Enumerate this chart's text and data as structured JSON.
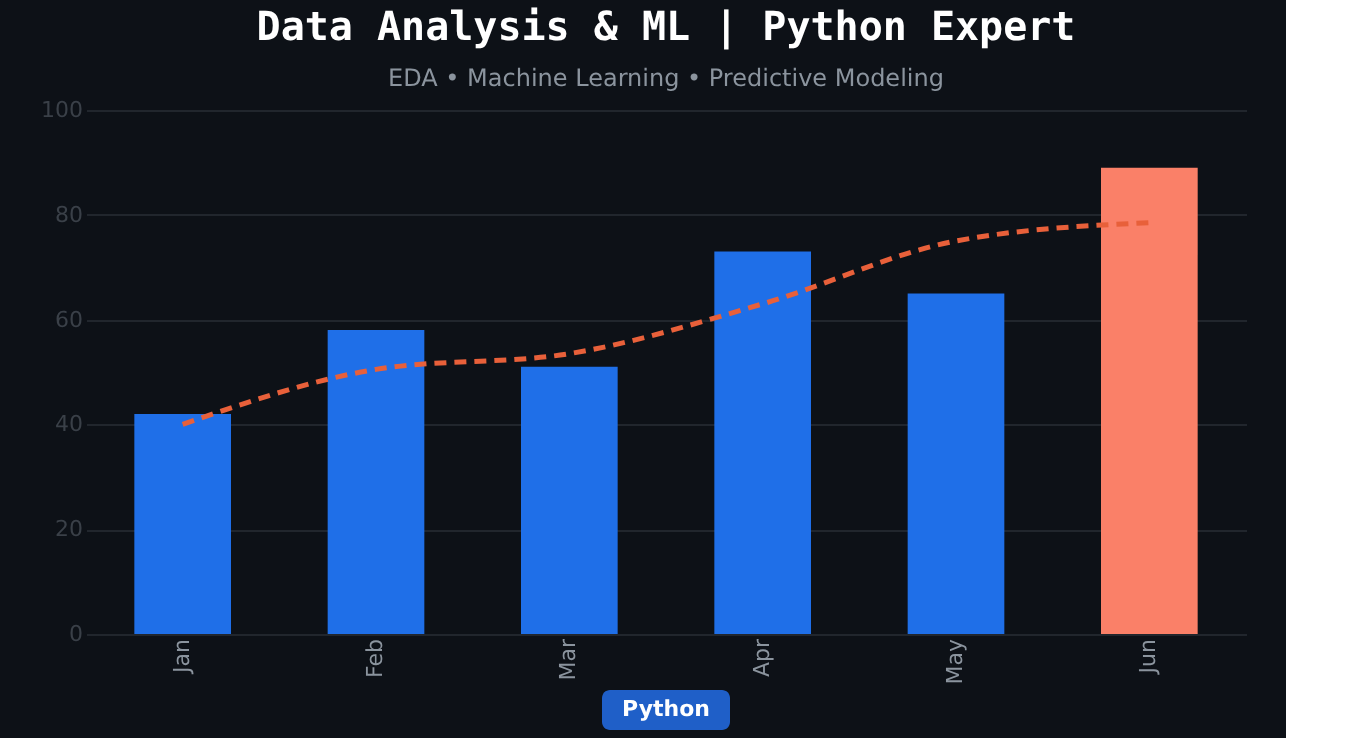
{
  "chart_data": {
    "type": "bar",
    "title": "Data Analysis & ML  |  Python Expert",
    "subtitle": "EDA  •  Machine Learning  •  Predictive Modeling",
    "categories": [
      "Jan",
      "Feb",
      "Mar",
      "Apr",
      "May",
      "Jun"
    ],
    "series": [
      {
        "values": [
          42,
          58,
          51,
          73,
          65,
          89
        ],
        "colors": [
          "#1f6fe8",
          "#1f6fe8",
          "#1f6fe8",
          "#1f6fe8",
          "#1f6fe8",
          "#fa8068"
        ]
      },
      {
        "type": "line",
        "color": "#e8603a",
        "line_style": "dashed",
        "marker": "none",
        "values": [
          40,
          50.5,
          53.5,
          63,
          75,
          78.5
        ]
      }
    ],
    "ylim": [
      0,
      100
    ],
    "yticks": [
      0,
      20,
      40,
      60,
      80,
      100
    ],
    "grid": "y",
    "annotations": [
      "Python"
    ]
  }
}
